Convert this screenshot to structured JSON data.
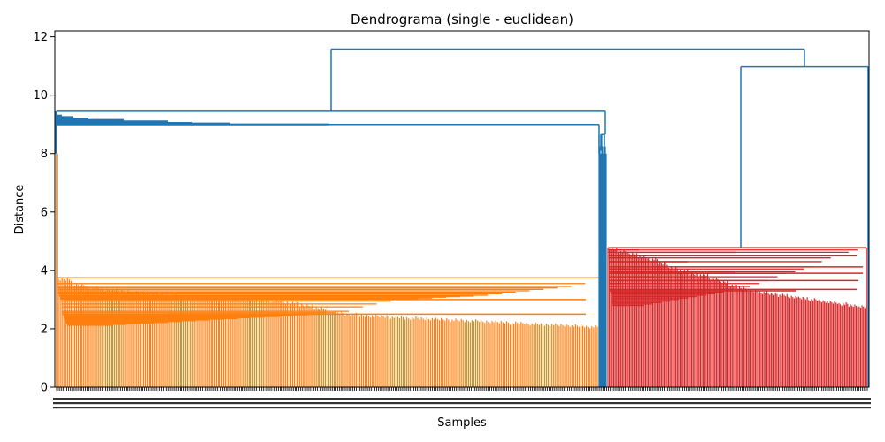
{
  "chart_data": {
    "type": "dendrogram",
    "title": "Dendrograma (single - euclidean)",
    "xlabel": "Samples",
    "ylabel": "Distance",
    "ylim": [
      0,
      12.2
    ],
    "yticks": [
      0,
      2,
      4,
      6,
      8,
      10,
      12
    ],
    "grid": false,
    "colors": {
      "orange": "#ff7f0e",
      "red": "#d62728",
      "blue": "#1f77b4"
    },
    "link_color_threshold": 8.1,
    "clusters": [
      {
        "name": "orange",
        "color": "#ff7f0e",
        "merge_heights_desc": [
          3.75,
          3.55,
          3.45,
          3.4,
          3.35,
          3.3,
          3.25,
          3.2,
          3.15,
          3.12,
          3.1,
          3.08,
          3.05,
          3.03,
          3.01,
          2.95,
          2.85,
          2.75,
          2.6,
          2.55,
          2.5,
          2.48,
          2.45,
          2.42,
          2.4,
          2.38,
          2.35,
          2.33,
          2.3,
          2.28,
          2.25,
          2.22,
          2.2,
          2.18,
          2.15,
          2.12
        ],
        "top_merge_height": 8.0
      },
      {
        "name": "blue-small",
        "color": "#1f77b4",
        "merge_heights_desc": [
          8.65,
          8.3,
          8.1
        ]
      },
      {
        "name": "red",
        "color": "#d62728",
        "merge_heights_desc": [
          4.78,
          4.7,
          4.62,
          4.5,
          4.43,
          4.3,
          4.12,
          4.05,
          3.95,
          3.9,
          3.78,
          3.65,
          3.55,
          3.45,
          3.35,
          3.3,
          3.25,
          3.2,
          3.15,
          3.1,
          3.05,
          3.0,
          2.95,
          2.9,
          2.85,
          2.8
        ]
      }
    ],
    "top_links": [
      {
        "height": 9.0,
        "color": "#1f77b4"
      },
      {
        "height": 9.45,
        "color": "#1f77b4"
      },
      {
        "height": 10.97,
        "color": "#1f77b4"
      },
      {
        "height": 11.58,
        "color": "#1f77b4"
      }
    ]
  }
}
